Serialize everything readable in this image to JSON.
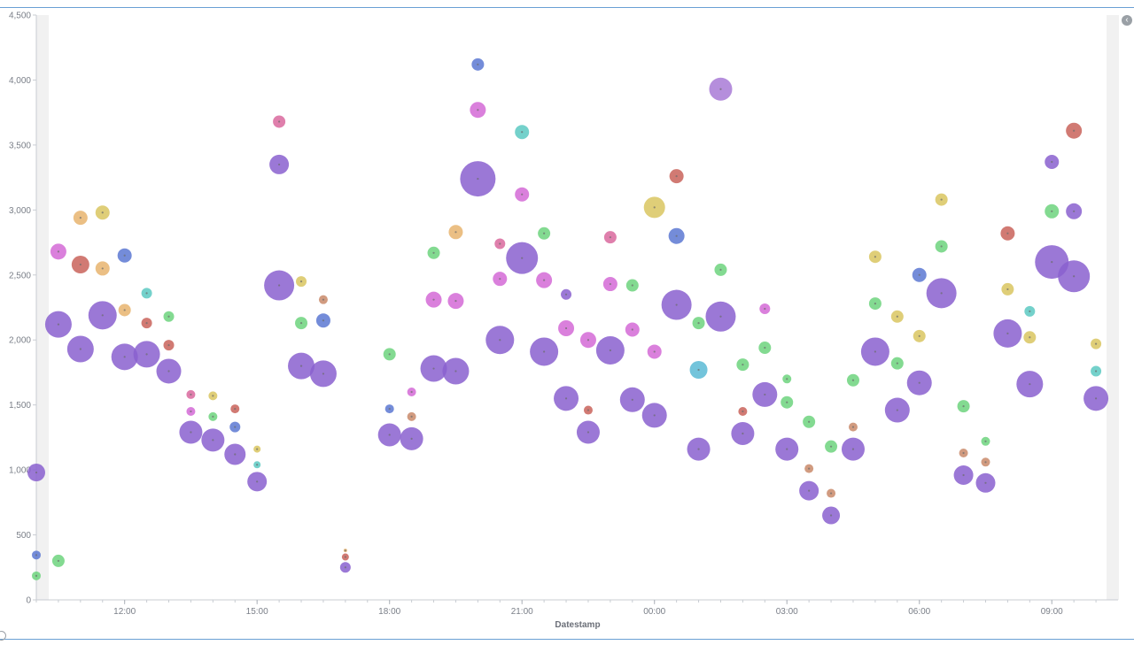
{
  "chart_data": {
    "type": "scatter",
    "subtype": "bubble",
    "xlabel": "Datestamp",
    "ylabel": "",
    "ylim": [
      0,
      4500
    ],
    "yticks": [
      0,
      500,
      1000,
      1500,
      2000,
      2500,
      3000,
      3500,
      4000,
      4500
    ],
    "ytick_labels": [
      "0",
      "500",
      "1,000",
      "1,500",
      "2,000",
      "2,500",
      "3,000",
      "3,500",
      "4,000",
      "4,500"
    ],
    "x_unit": "hours",
    "xlim": [
      10,
      34.5
    ],
    "xticks": [
      12,
      15,
      18,
      21,
      24,
      27,
      30,
      33
    ],
    "xtick_labels": [
      "12:00",
      "15:00",
      "18:00",
      "21:00",
      "00:00",
      "03:00",
      "06:00",
      "09:00"
    ],
    "grid": false,
    "legend": "none",
    "colors": {
      "purple": "#8a60cf",
      "magenta": "#d46ad6",
      "green": "#6dd47e",
      "orange": "#e8b46e",
      "olive": "#d9c660",
      "red": "#c9635a",
      "blue": "#5c78d2",
      "teal": "#5cc9c2",
      "cyan": "#5bbad5",
      "pink": "#d9699e",
      "brown": "#c98a6a",
      "lightpurple": "#a87ad6"
    },
    "points": [
      {
        "x": 10.0,
        "y": 980,
        "size": 10,
        "color": "purple"
      },
      {
        "x": 10.0,
        "y": 345,
        "size": 5,
        "color": "blue"
      },
      {
        "x": 10.0,
        "y": 185,
        "size": 5,
        "color": "green"
      },
      {
        "x": 10.5,
        "y": 2680,
        "size": 9,
        "color": "magenta"
      },
      {
        "x": 10.5,
        "y": 2120,
        "size": 15,
        "color": "purple"
      },
      {
        "x": 10.5,
        "y": 300,
        "size": 7,
        "color": "green"
      },
      {
        "x": 11.0,
        "y": 2940,
        "size": 8,
        "color": "orange"
      },
      {
        "x": 11.0,
        "y": 2580,
        "size": 10,
        "color": "red"
      },
      {
        "x": 11.0,
        "y": 1930,
        "size": 15,
        "color": "purple"
      },
      {
        "x": 11.5,
        "y": 2980,
        "size": 8,
        "color": "olive"
      },
      {
        "x": 11.5,
        "y": 2550,
        "size": 8,
        "color": "orange"
      },
      {
        "x": 11.5,
        "y": 2190,
        "size": 16,
        "color": "purple"
      },
      {
        "x": 12.0,
        "y": 2650,
        "size": 8,
        "color": "blue"
      },
      {
        "x": 12.0,
        "y": 2230,
        "size": 7,
        "color": "orange"
      },
      {
        "x": 12.0,
        "y": 1870,
        "size": 15,
        "color": "purple"
      },
      {
        "x": 12.5,
        "y": 2360,
        "size": 6,
        "color": "teal"
      },
      {
        "x": 12.5,
        "y": 2130,
        "size": 6,
        "color": "red"
      },
      {
        "x": 12.5,
        "y": 1890,
        "size": 15,
        "color": "purple"
      },
      {
        "x": 13.0,
        "y": 2180,
        "size": 6,
        "color": "green"
      },
      {
        "x": 13.0,
        "y": 1960,
        "size": 6,
        "color": "red"
      },
      {
        "x": 13.0,
        "y": 1760,
        "size": 14,
        "color": "purple"
      },
      {
        "x": 13.5,
        "y": 1580,
        "size": 5,
        "color": "pink"
      },
      {
        "x": 13.5,
        "y": 1450,
        "size": 5,
        "color": "magenta"
      },
      {
        "x": 13.5,
        "y": 1290,
        "size": 13,
        "color": "purple"
      },
      {
        "x": 14.0,
        "y": 1570,
        "size": 5,
        "color": "olive"
      },
      {
        "x": 14.0,
        "y": 1410,
        "size": 5,
        "color": "green"
      },
      {
        "x": 14.0,
        "y": 1230,
        "size": 13,
        "color": "purple"
      },
      {
        "x": 14.5,
        "y": 1470,
        "size": 5,
        "color": "red"
      },
      {
        "x": 14.5,
        "y": 1330,
        "size": 6,
        "color": "blue"
      },
      {
        "x": 14.5,
        "y": 1120,
        "size": 12,
        "color": "purple"
      },
      {
        "x": 15.0,
        "y": 1160,
        "size": 4,
        "color": "olive"
      },
      {
        "x": 15.0,
        "y": 1040,
        "size": 4,
        "color": "teal"
      },
      {
        "x": 15.0,
        "y": 910,
        "size": 11,
        "color": "purple"
      },
      {
        "x": 15.5,
        "y": 3680,
        "size": 7,
        "color": "pink"
      },
      {
        "x": 15.5,
        "y": 3350,
        "size": 11,
        "color": "purple"
      },
      {
        "x": 15.5,
        "y": 2420,
        "size": 17,
        "color": "purple"
      },
      {
        "x": 16.0,
        "y": 2450,
        "size": 6,
        "color": "olive"
      },
      {
        "x": 16.0,
        "y": 2130,
        "size": 7,
        "color": "green"
      },
      {
        "x": 16.0,
        "y": 1800,
        "size": 15,
        "color": "purple"
      },
      {
        "x": 16.5,
        "y": 2310,
        "size": 5,
        "color": "brown"
      },
      {
        "x": 16.5,
        "y": 2150,
        "size": 8,
        "color": "blue"
      },
      {
        "x": 16.5,
        "y": 1740,
        "size": 15,
        "color": "purple"
      },
      {
        "x": 17.0,
        "y": 380,
        "size": 2,
        "color": "orange"
      },
      {
        "x": 17.0,
        "y": 330,
        "size": 4,
        "color": "red"
      },
      {
        "x": 17.0,
        "y": 250,
        "size": 6,
        "color": "purple"
      },
      {
        "x": 18.0,
        "y": 1890,
        "size": 7,
        "color": "green"
      },
      {
        "x": 18.0,
        "y": 1470,
        "size": 5,
        "color": "blue"
      },
      {
        "x": 18.0,
        "y": 1270,
        "size": 13,
        "color": "purple"
      },
      {
        "x": 18.5,
        "y": 1600,
        "size": 5,
        "color": "magenta"
      },
      {
        "x": 18.5,
        "y": 1410,
        "size": 5,
        "color": "brown"
      },
      {
        "x": 18.5,
        "y": 1240,
        "size": 13,
        "color": "purple"
      },
      {
        "x": 19.0,
        "y": 2670,
        "size": 7,
        "color": "green"
      },
      {
        "x": 19.0,
        "y": 2310,
        "size": 9,
        "color": "magenta"
      },
      {
        "x": 19.0,
        "y": 1780,
        "size": 15,
        "color": "purple"
      },
      {
        "x": 19.5,
        "y": 2830,
        "size": 8,
        "color": "orange"
      },
      {
        "x": 19.5,
        "y": 2300,
        "size": 9,
        "color": "magenta"
      },
      {
        "x": 19.5,
        "y": 1760,
        "size": 15,
        "color": "purple"
      },
      {
        "x": 20.0,
        "y": 4120,
        "size": 7,
        "color": "blue"
      },
      {
        "x": 20.0,
        "y": 3770,
        "size": 9,
        "color": "magenta"
      },
      {
        "x": 20.0,
        "y": 3240,
        "size": 20,
        "color": "purple"
      },
      {
        "x": 20.5,
        "y": 2740,
        "size": 6,
        "color": "pink"
      },
      {
        "x": 20.5,
        "y": 2470,
        "size": 8,
        "color": "magenta"
      },
      {
        "x": 20.5,
        "y": 2000,
        "size": 16,
        "color": "purple"
      },
      {
        "x": 21.0,
        "y": 3600,
        "size": 8,
        "color": "teal"
      },
      {
        "x": 21.0,
        "y": 3120,
        "size": 8,
        "color": "magenta"
      },
      {
        "x": 21.0,
        "y": 2630,
        "size": 18,
        "color": "purple"
      },
      {
        "x": 21.5,
        "y": 2820,
        "size": 7,
        "color": "green"
      },
      {
        "x": 21.5,
        "y": 2460,
        "size": 9,
        "color": "magenta"
      },
      {
        "x": 21.5,
        "y": 1910,
        "size": 16,
        "color": "purple"
      },
      {
        "x": 22.0,
        "y": 2350,
        "size": 6,
        "color": "purple"
      },
      {
        "x": 22.0,
        "y": 2090,
        "size": 9,
        "color": "magenta"
      },
      {
        "x": 22.0,
        "y": 1550,
        "size": 14,
        "color": "purple"
      },
      {
        "x": 22.5,
        "y": 2000,
        "size": 9,
        "color": "magenta"
      },
      {
        "x": 22.5,
        "y": 1460,
        "size": 5,
        "color": "red"
      },
      {
        "x": 22.5,
        "y": 1290,
        "size": 13,
        "color": "purple"
      },
      {
        "x": 23.0,
        "y": 2790,
        "size": 7,
        "color": "pink"
      },
      {
        "x": 23.0,
        "y": 2430,
        "size": 8,
        "color": "magenta"
      },
      {
        "x": 23.0,
        "y": 1920,
        "size": 16,
        "color": "purple"
      },
      {
        "x": 23.5,
        "y": 2420,
        "size": 7,
        "color": "green"
      },
      {
        "x": 23.5,
        "y": 2080,
        "size": 8,
        "color": "magenta"
      },
      {
        "x": 23.5,
        "y": 1540,
        "size": 14,
        "color": "purple"
      },
      {
        "x": 24.0,
        "y": 3020,
        "size": 12,
        "color": "olive"
      },
      {
        "x": 24.0,
        "y": 1910,
        "size": 8,
        "color": "magenta"
      },
      {
        "x": 24.0,
        "y": 1420,
        "size": 14,
        "color": "purple"
      },
      {
        "x": 24.5,
        "y": 3260,
        "size": 8,
        "color": "red"
      },
      {
        "x": 24.5,
        "y": 2800,
        "size": 9,
        "color": "blue"
      },
      {
        "x": 24.5,
        "y": 2270,
        "size": 17,
        "color": "purple"
      },
      {
        "x": 25.0,
        "y": 2130,
        "size": 7,
        "color": "green"
      },
      {
        "x": 25.0,
        "y": 1770,
        "size": 10,
        "color": "cyan"
      },
      {
        "x": 25.0,
        "y": 1160,
        "size": 13,
        "color": "purple"
      },
      {
        "x": 25.5,
        "y": 3930,
        "size": 13,
        "color": "lightpurple"
      },
      {
        "x": 25.5,
        "y": 2540,
        "size": 7,
        "color": "green"
      },
      {
        "x": 25.5,
        "y": 2180,
        "size": 17,
        "color": "purple"
      },
      {
        "x": 26.0,
        "y": 1810,
        "size": 7,
        "color": "green"
      },
      {
        "x": 26.0,
        "y": 1450,
        "size": 5,
        "color": "red"
      },
      {
        "x": 26.0,
        "y": 1280,
        "size": 13,
        "color": "purple"
      },
      {
        "x": 26.5,
        "y": 2240,
        "size": 6,
        "color": "magenta"
      },
      {
        "x": 26.5,
        "y": 1940,
        "size": 7,
        "color": "green"
      },
      {
        "x": 26.5,
        "y": 1580,
        "size": 14,
        "color": "purple"
      },
      {
        "x": 27.0,
        "y": 1700,
        "size": 5,
        "color": "green"
      },
      {
        "x": 27.0,
        "y": 1520,
        "size": 7,
        "color": "green"
      },
      {
        "x": 27.0,
        "y": 1160,
        "size": 13,
        "color": "purple"
      },
      {
        "x": 27.5,
        "y": 1370,
        "size": 7,
        "color": "green"
      },
      {
        "x": 27.5,
        "y": 1010,
        "size": 5,
        "color": "brown"
      },
      {
        "x": 27.5,
        "y": 840,
        "size": 11,
        "color": "purple"
      },
      {
        "x": 28.0,
        "y": 1180,
        "size": 7,
        "color": "green"
      },
      {
        "x": 28.0,
        "y": 820,
        "size": 5,
        "color": "brown"
      },
      {
        "x": 28.0,
        "y": 650,
        "size": 10,
        "color": "purple"
      },
      {
        "x": 28.5,
        "y": 1690,
        "size": 7,
        "color": "green"
      },
      {
        "x": 28.5,
        "y": 1330,
        "size": 5,
        "color": "brown"
      },
      {
        "x": 28.5,
        "y": 1160,
        "size": 13,
        "color": "purple"
      },
      {
        "x": 29.0,
        "y": 2640,
        "size": 7,
        "color": "olive"
      },
      {
        "x": 29.0,
        "y": 2280,
        "size": 7,
        "color": "green"
      },
      {
        "x": 29.0,
        "y": 1910,
        "size": 16,
        "color": "purple"
      },
      {
        "x": 29.5,
        "y": 2180,
        "size": 7,
        "color": "olive"
      },
      {
        "x": 29.5,
        "y": 1820,
        "size": 7,
        "color": "green"
      },
      {
        "x": 29.5,
        "y": 1460,
        "size": 14,
        "color": "purple"
      },
      {
        "x": 30.0,
        "y": 2500,
        "size": 8,
        "color": "blue"
      },
      {
        "x": 30.0,
        "y": 2030,
        "size": 7,
        "color": "olive"
      },
      {
        "x": 30.0,
        "y": 1670,
        "size": 14,
        "color": "purple"
      },
      {
        "x": 30.5,
        "y": 3080,
        "size": 7,
        "color": "olive"
      },
      {
        "x": 30.5,
        "y": 2720,
        "size": 7,
        "color": "green"
      },
      {
        "x": 30.5,
        "y": 2360,
        "size": 17,
        "color": "purple"
      },
      {
        "x": 31.0,
        "y": 1490,
        "size": 7,
        "color": "green"
      },
      {
        "x": 31.0,
        "y": 1130,
        "size": 5,
        "color": "brown"
      },
      {
        "x": 31.0,
        "y": 960,
        "size": 11,
        "color": "purple"
      },
      {
        "x": 31.5,
        "y": 1220,
        "size": 5,
        "color": "green"
      },
      {
        "x": 31.5,
        "y": 1060,
        "size": 5,
        "color": "brown"
      },
      {
        "x": 31.5,
        "y": 900,
        "size": 11,
        "color": "purple"
      },
      {
        "x": 32.0,
        "y": 2820,
        "size": 8,
        "color": "red"
      },
      {
        "x": 32.0,
        "y": 2390,
        "size": 7,
        "color": "olive"
      },
      {
        "x": 32.0,
        "y": 2050,
        "size": 16,
        "color": "purple"
      },
      {
        "x": 32.5,
        "y": 2220,
        "size": 6,
        "color": "teal"
      },
      {
        "x": 32.5,
        "y": 2020,
        "size": 7,
        "color": "olive"
      },
      {
        "x": 32.5,
        "y": 1660,
        "size": 15,
        "color": "purple"
      },
      {
        "x": 33.0,
        "y": 3370,
        "size": 8,
        "color": "purple"
      },
      {
        "x": 33.0,
        "y": 2990,
        "size": 8,
        "color": "green"
      },
      {
        "x": 33.0,
        "y": 2600,
        "size": 19,
        "color": "purple"
      },
      {
        "x": 33.5,
        "y": 3610,
        "size": 9,
        "color": "red"
      },
      {
        "x": 33.5,
        "y": 2990,
        "size": 9,
        "color": "purple"
      },
      {
        "x": 33.5,
        "y": 2490,
        "size": 18,
        "color": "purple"
      },
      {
        "x": 34.0,
        "y": 1970,
        "size": 6,
        "color": "olive"
      },
      {
        "x": 34.0,
        "y": 1760,
        "size": 6,
        "color": "teal"
      },
      {
        "x": 34.0,
        "y": 1550,
        "size": 14,
        "color": "purple"
      }
    ]
  }
}
